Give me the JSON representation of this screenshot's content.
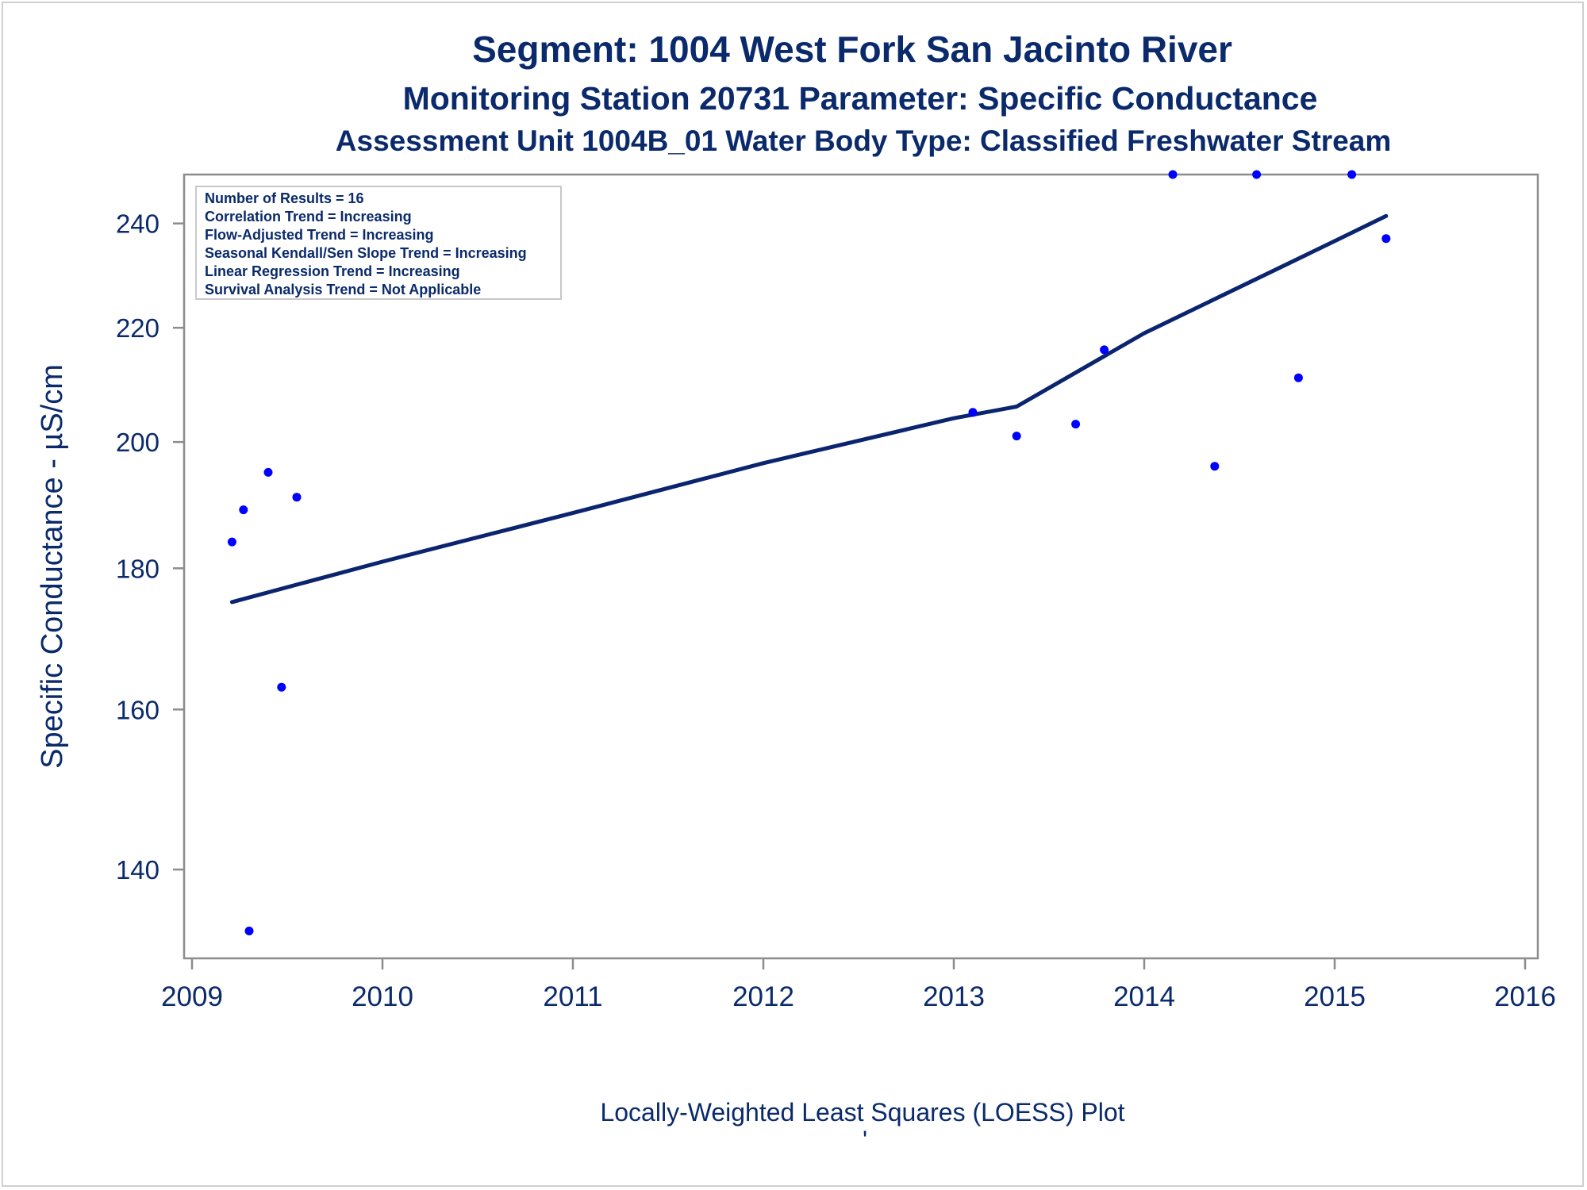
{
  "chart_data": {
    "type": "scatter",
    "title": "Segment: 1004  West Fork San Jacinto River",
    "subtitle": "Monitoring Station 20731 Parameter: Specific Conductance",
    "subtitle2": "Assessment Unit 1004B_01   Water Body Type: Classified Freshwater Stream",
    "xlabel": "",
    "ylabel": "Specific Conductance -  µS/cm",
    "footnote": "Locally-Weighted Least Squares (LOESS) Plot",
    "footnote_mark": "'",
    "xlim": [
      2009,
      2016
    ],
    "ylim": [
      130,
      250
    ],
    "y_scale": "log",
    "x_ticks": [
      2009,
      2010,
      2011,
      2012,
      2013,
      2014,
      2015,
      2016
    ],
    "y_ticks": [
      140,
      160,
      180,
      200,
      220,
      240
    ],
    "grid": false,
    "stats_box": {
      "placement": "top-left",
      "lines": [
        "Number of Results = 16",
        "Correlation Trend = Increasing",
        "Flow-Adjusted Trend = Increasing",
        "Seasonal Kendall/Sen Slope Trend = Increasing",
        "Linear Regression Trend = Increasing",
        "Survival Analysis Trend = Not Applicable"
      ]
    },
    "points": {
      "color": "#0000ff",
      "x": [
        2009.21,
        2009.27,
        2009.3,
        2009.4,
        2009.47,
        2009.55,
        2013.1,
        2013.33,
        2013.64,
        2013.79,
        2014.15,
        2014.37,
        2014.59,
        2014.81,
        2015.09,
        2015.27
      ],
      "y": [
        184,
        189,
        133,
        195,
        163,
        191,
        205,
        201,
        203,
        216,
        250,
        196,
        250,
        211,
        250,
        237
      ]
    },
    "loess": {
      "color": "#0a2470",
      "x": [
        2009.21,
        2010.0,
        2011.0,
        2012.0,
        2013.0,
        2013.33,
        2014.0,
        2015.0,
        2015.27
      ],
      "y": [
        175,
        181,
        188.5,
        196.5,
        204,
        206,
        219,
        236.5,
        241.5
      ]
    }
  }
}
